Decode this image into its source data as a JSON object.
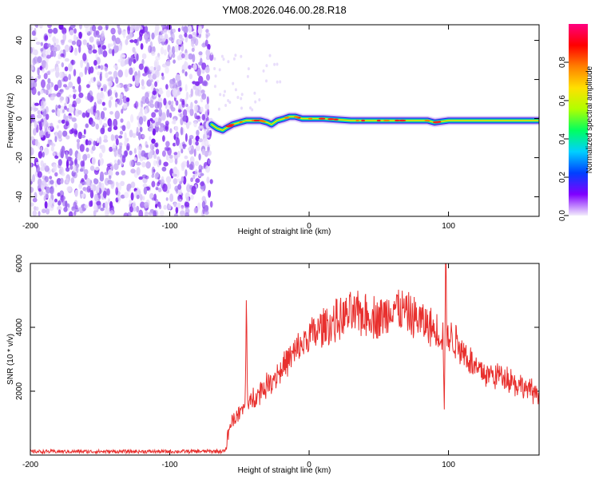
{
  "title": "YM08.2026.046.00.28.R18",
  "chart_data": [
    {
      "type": "heatmap",
      "xlabel": "Height of straight line (km)",
      "ylabel": "Frequency (Hz)",
      "xlim": [
        -200,
        165
      ],
      "ylim": [
        -50,
        48
      ],
      "xticks": [
        -200,
        -100,
        0,
        100
      ],
      "yticks": [
        -40,
        -20,
        0,
        20,
        40
      ],
      "noise_region_x": [
        -200,
        -70
      ],
      "ridge": [
        [
          -70,
          -3
        ],
        [
          -66,
          -5
        ],
        [
          -62,
          -6
        ],
        [
          -60,
          -5
        ],
        [
          -55,
          -3
        ],
        [
          -50,
          -2
        ],
        [
          -45,
          -1
        ],
        [
          -40,
          -1
        ],
        [
          -35,
          -1
        ],
        [
          -30,
          -2
        ],
        [
          -27,
          -3
        ],
        [
          -23,
          -1
        ],
        [
          -18,
          0
        ],
        [
          -14,
          1
        ],
        [
          -10,
          1
        ],
        [
          -5,
          0
        ],
        [
          0,
          0
        ],
        [
          10,
          0
        ],
        [
          30,
          -1
        ],
        [
          60,
          -1
        ],
        [
          85,
          -1
        ],
        [
          90,
          -2
        ],
        [
          100,
          -1
        ],
        [
          165,
          -1
        ]
      ],
      "colorbar": {
        "label": "Normalized spectral amplitude",
        "range": [
          0,
          1
        ],
        "ticks": [
          0.0,
          0.2,
          0.4,
          0.6,
          0.8
        ],
        "colors": [
          "#f2ecfc",
          "#8000ff",
          "#0040ff",
          "#00d0ff",
          "#00ff60",
          "#b0ff00",
          "#ffe000",
          "#ff8000",
          "#ff0000",
          "#ff0080"
        ]
      }
    },
    {
      "type": "line",
      "xlabel": "Height of straight line (km)",
      "ylabel": "SNR (10 * v/v)",
      "xlim": [
        -200,
        165
      ],
      "ylim": [
        0,
        6000
      ],
      "xticks": [
        -200,
        -100,
        0,
        100
      ],
      "yticks": [
        2000,
        4000,
        6000
      ],
      "line_color": "#e8302e",
      "series_points": [
        [
          -200,
          110
        ],
        [
          -150,
          110
        ],
        [
          -100,
          110
        ],
        [
          -60,
          120
        ],
        [
          -57,
          900
        ],
        [
          -55,
          1100
        ],
        [
          -50,
          1300
        ],
        [
          -46,
          1500
        ],
        [
          -45,
          4800
        ],
        [
          -44,
          1500
        ],
        [
          -40,
          1800
        ],
        [
          -30,
          2200
        ],
        [
          -20,
          2700
        ],
        [
          -10,
          3200
        ],
        [
          0,
          3700
        ],
        [
          10,
          4000
        ],
        [
          20,
          4200
        ],
        [
          30,
          4400
        ],
        [
          40,
          4400
        ],
        [
          50,
          4300
        ],
        [
          55,
          4350
        ],
        [
          60,
          4700
        ],
        [
          65,
          4550
        ],
        [
          70,
          4400
        ],
        [
          80,
          4200
        ],
        [
          90,
          3900
        ],
        [
          96,
          3800
        ],
        [
          97,
          1500
        ],
        [
          98,
          6000
        ],
        [
          99,
          3700
        ],
        [
          105,
          3600
        ],
        [
          115,
          3000
        ],
        [
          120,
          2700
        ],
        [
          130,
          2500
        ],
        [
          140,
          2500
        ],
        [
          150,
          2200
        ],
        [
          160,
          2000
        ],
        [
          165,
          1900
        ]
      ]
    }
  ]
}
